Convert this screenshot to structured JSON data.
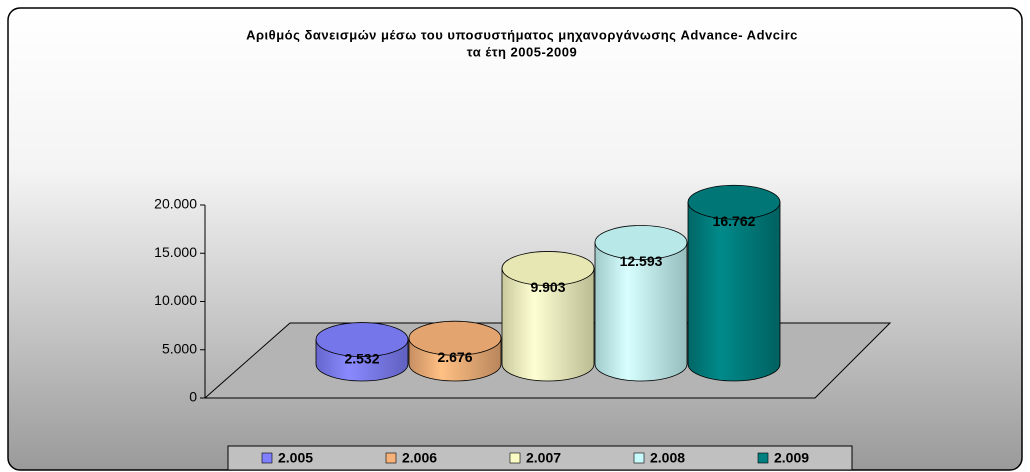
{
  "chart_data": {
    "type": "bar",
    "title": [
      "Αριθμός δανεισμών μέσω του υποσυστήματος μηχανοργάνωσης Advance- Advcirc",
      "τα έτη 2005-2009"
    ],
    "categories": [
      null
    ],
    "series": [
      {
        "name": "2.005",
        "color": "#8080ff",
        "values": [
          2532
        ],
        "value_labels": [
          "2.532"
        ]
      },
      {
        "name": "2.006",
        "color": "#f7b27a",
        "values": [
          2676
        ],
        "value_labels": [
          "2.676"
        ]
      },
      {
        "name": "2.007",
        "color": "#fbfbc4",
        "values": [
          9903
        ],
        "value_labels": [
          "9.903"
        ]
      },
      {
        "name": "2.008",
        "color": "#c8fcfc",
        "values": [
          12593
        ],
        "value_labels": [
          "12.593"
        ]
      },
      {
        "name": "2.009",
        "color": "#008080",
        "values": [
          16762
        ],
        "value_labels": [
          "16.762"
        ]
      }
    ],
    "ylim": [
      0,
      20000
    ],
    "yticks": [
      0,
      {
        "value": 5000,
        "label": "5.000"
      },
      {
        "value": 10000,
        "label": "10.000"
      },
      {
        "value": 15000,
        "label": "15.000"
      },
      {
        "value": 20000,
        "label": "20.000"
      }
    ],
    "legend": "bottom"
  }
}
